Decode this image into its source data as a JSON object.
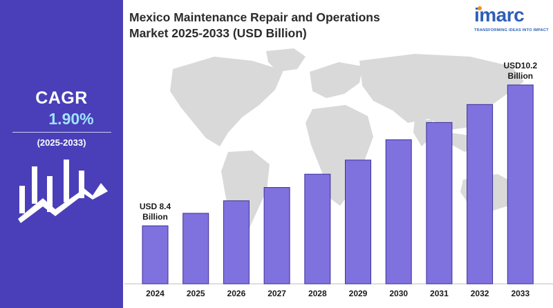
{
  "title_line1": "Mexico Maintenance Repair and Operations",
  "title_line2": "Market 2025-2033 (USD Billion)",
  "logo": {
    "name": "imarc",
    "tagline": "TRANSFORMING IDEAS INTO IMPACT"
  },
  "cagr": {
    "label": "CAGR",
    "value": "1.90%",
    "period": "(2025-2033)"
  },
  "annotations": {
    "first": {
      "line1": "USD 8.4",
      "line2": "Billion"
    },
    "last": {
      "line1": "USD10.2",
      "line2": "Billion"
    }
  },
  "colors": {
    "panel": "#4a3fb8",
    "bar": "#7f72de",
    "bar_border": "#3a2f9a",
    "map": "#d9d9d9"
  },
  "chart_data": {
    "type": "bar",
    "title": "Mexico Maintenance Repair and Operations Market 2025-2033 (USD Billion)",
    "categories": [
      "2024",
      "2025",
      "2026",
      "2027",
      "2028",
      "2029",
      "2030",
      "2031",
      "2032",
      "2033"
    ],
    "values": [
      8.4,
      8.56,
      8.72,
      8.89,
      9.06,
      9.24,
      9.5,
      9.72,
      9.95,
      10.2
    ],
    "data_labels": {
      "2024": "USD 8.4 Billion",
      "2033": "USD10.2 Billion"
    },
    "xlabel": "",
    "ylabel": "",
    "axis_visible": false,
    "grid": false,
    "legend": "none"
  }
}
